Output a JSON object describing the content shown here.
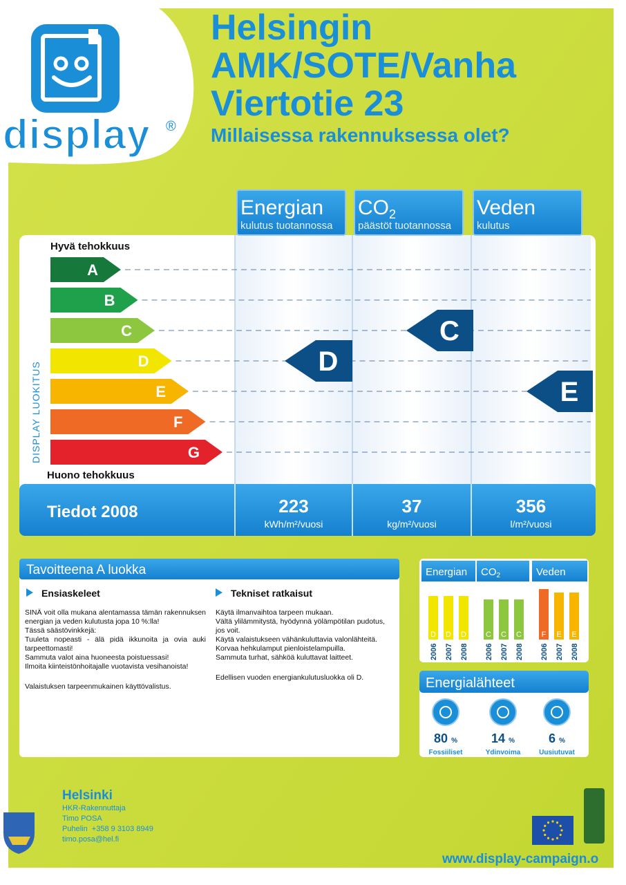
{
  "header": {
    "logo": "display",
    "registered": "®",
    "title_lines": [
      "Helsingin",
      "AMK/SOTE/Vanha",
      "Viertotie 23"
    ],
    "subtitle": "Millaisessa rakennuksessa olet?"
  },
  "rating": {
    "top_label": "Hyvä tehokkuus",
    "bottom_label": "Huono tehokkuus",
    "axis_label": "DISPLAY LUOKITUS",
    "classes": [
      "A",
      "B",
      "C",
      "D",
      "E",
      "F",
      "G"
    ],
    "year_label": "Tiedot 2008",
    "columns": [
      {
        "title": "Energian",
        "title_sub": null,
        "subtitle": "kulutus tuotannossa",
        "class": "D",
        "value": 223,
        "unit": "kWh/m²/vuosi"
      },
      {
        "title": "CO",
        "title_sub": "2",
        "subtitle": "päästöt tuotannossa",
        "class": "C",
        "value": 37,
        "unit": "kg/m²/vuosi"
      },
      {
        "title": "Veden",
        "title_sub": null,
        "subtitle": "kulutus",
        "class": "E",
        "value": 356,
        "unit": "l/m²/vuosi"
      }
    ]
  },
  "target": {
    "title": "Tavoitteena A luokka",
    "sections": [
      {
        "heading": "Ensiaskeleet",
        "paragraphs": [
          "SINÄ voit olla mukana alentamassa tämän rakennuksen energian ja veden kulutusta jopa 10 %:lla!",
          "Tässä säästövinkkejä:",
          "Tuuleta nopeasti - älä pidä ikkunoita ja ovia auki tarpeettomasti!",
          "Sammuta valot aina huoneesta poistuessasi!",
          "Ilmoita kiinteistönhoitajalle vuotavista vesihanoista!",
          "Valaistuksen tarpeenmukainen käyttövalistus."
        ]
      },
      {
        "heading": "Tekniset ratkaisut",
        "paragraphs": [
          "Käytä ilmanvaihtoa tarpeen mukaan.",
          "Vältä ylilämmitystä, hyödynnä yölämpötilan pudotus, jos voit.",
          "Käytä valaistukseen vähänkuluttavia valonlähteitä.",
          "Korvaa hehkulamput pienloistelampuilla.",
          "Sammuta turhat, sähköä kuluttavat laitteet.",
          "Edellisen vuoden energiankulutusluokka oli D."
        ]
      }
    ]
  },
  "history": {
    "columns": [
      {
        "title": "Energian",
        "title_sub": null,
        "years": [
          "2006",
          "2007",
          "2008"
        ],
        "classes": [
          "D",
          "D",
          "D"
        ]
      },
      {
        "title": "CO",
        "title_sub": "2",
        "years": [
          "2006",
          "2007",
          "2008"
        ],
        "classes": [
          "C",
          "C",
          "C"
        ]
      },
      {
        "title": "Veden",
        "title_sub": null,
        "years": [
          "2006",
          "2007",
          "2008"
        ],
        "classes": [
          "F",
          "E",
          "E"
        ]
      }
    ]
  },
  "sources": {
    "title": "Energialähteet",
    "items": [
      {
        "value": 80,
        "unit": "%",
        "label": "Fossiiliset"
      },
      {
        "value": 14,
        "unit": "%",
        "label": "Ydinvoima"
      },
      {
        "value": 6,
        "unit": "%",
        "label": "Uusiutuvat"
      }
    ]
  },
  "footer": {
    "city": "Helsinki",
    "lines": [
      "HKR-Rakennuttaja",
      "Timo POSA",
      "Puhelin  +358 9 3103 8949",
      "timo.posa@hel.fi"
    ],
    "url": "www.display-campaign.o"
  }
}
